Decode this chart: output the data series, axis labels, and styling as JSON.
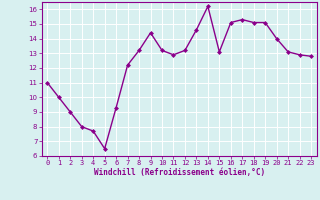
{
  "x": [
    0,
    1,
    2,
    3,
    4,
    5,
    6,
    7,
    8,
    9,
    10,
    11,
    12,
    13,
    14,
    15,
    16,
    17,
    18,
    19,
    20,
    21,
    22,
    23
  ],
  "y": [
    11,
    10,
    9,
    8,
    7.7,
    6.5,
    9.3,
    12.2,
    13.2,
    14.4,
    13.2,
    12.9,
    13.2,
    14.6,
    16.2,
    13.1,
    15.1,
    15.3,
    15.1,
    15.1,
    14.0,
    13.1,
    12.9,
    12.8
  ],
  "line_color": "#8b008b",
  "marker": "D",
  "marker_size": 2,
  "bg_color": "#d8f0f0",
  "grid_color": "#ffffff",
  "xlabel": "Windchill (Refroidissement éolien,°C)",
  "xlabel_color": "#8b008b",
  "tick_color": "#8b008b",
  "spine_color": "#8b008b",
  "ylim": [
    6,
    16.5
  ],
  "xlim": [
    -0.5,
    23.5
  ],
  "yticks": [
    6,
    7,
    8,
    9,
    10,
    11,
    12,
    13,
    14,
    15,
    16
  ],
  "xticks": [
    0,
    1,
    2,
    3,
    4,
    5,
    6,
    7,
    8,
    9,
    10,
    11,
    12,
    13,
    14,
    15,
    16,
    17,
    18,
    19,
    20,
    21,
    22,
    23
  ],
  "line_width": 1.0,
  "tick_fontsize": 5.0,
  "xlabel_fontsize": 5.5
}
